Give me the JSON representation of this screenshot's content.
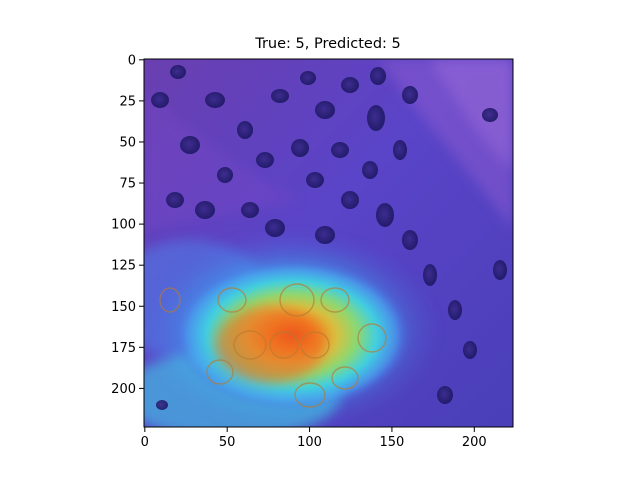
{
  "figure": {
    "title": "True: 5, Predicted: 5",
    "x_axis": {
      "range": [
        0,
        224
      ],
      "ticks": [
        "0",
        "50",
        "100",
        "150",
        "200"
      ],
      "tick_values": [
        0,
        50,
        100,
        150,
        200
      ]
    },
    "y_axis": {
      "range": [
        0,
        224
      ],
      "inverted": true,
      "ticks": [
        "0",
        "25",
        "50",
        "75",
        "100",
        "125",
        "150",
        "175",
        "200"
      ],
      "tick_values": [
        0,
        25,
        50,
        75,
        100,
        125,
        150,
        175,
        200
      ]
    },
    "image": {
      "description_icon": "histology-gradcam-heatmap-image",
      "colormap": "jet",
      "background_color": "#5a3fb8",
      "hotspot_color": "#f0a020"
    }
  }
}
